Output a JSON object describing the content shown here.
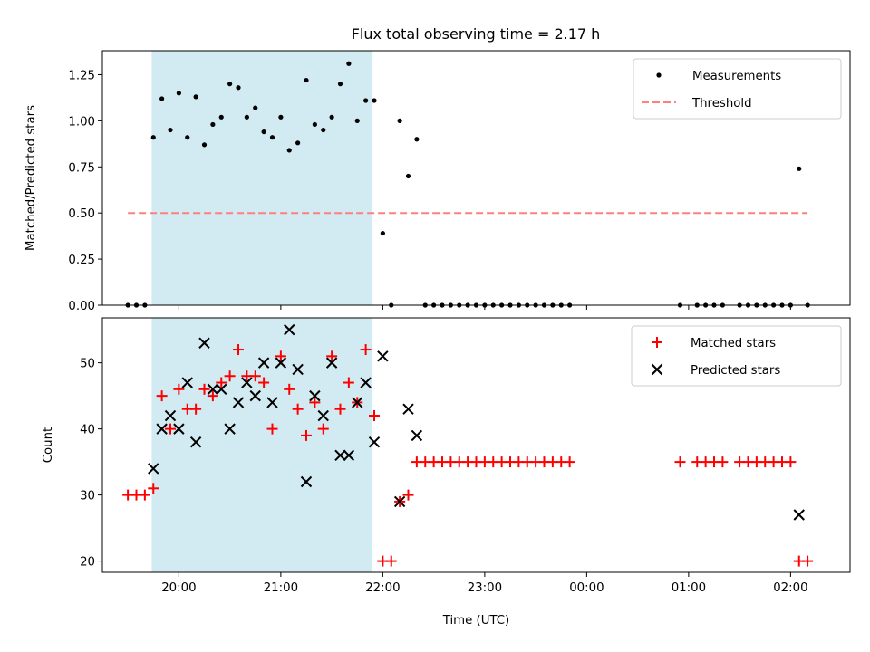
{
  "title": "Flux total observing time = 2.17 h",
  "colors": {
    "shade": "#add8e6",
    "measurements": "#000000",
    "threshold": "#ff7f7f",
    "matched": "#ff0000",
    "predicted": "#000000"
  },
  "chart_data": [
    {
      "type": "scatter",
      "ylabel": "Matched/Predicted stars",
      "ylim": [
        0,
        1.38
      ],
      "yticks": [
        "0.00",
        "0.25",
        "0.50",
        "0.75",
        "1.00",
        "1.25"
      ],
      "xlim": [
        "19:15",
        "02:35"
      ],
      "shaded_span": [
        "19:44",
        "21:54"
      ],
      "legend_position": "top-right",
      "series": [
        {
          "name": "Measurements",
          "marker": "dot",
          "points": [
            [
              "19:30",
              0.0
            ],
            [
              "19:35",
              0.0
            ],
            [
              "19:40",
              0.0
            ],
            [
              "19:45",
              0.91
            ],
            [
              "19:50",
              1.12
            ],
            [
              "19:55",
              0.95
            ],
            [
              "20:00",
              1.15
            ],
            [
              "20:05",
              0.91
            ],
            [
              "20:10",
              1.13
            ],
            [
              "20:15",
              0.87
            ],
            [
              "20:20",
              0.98
            ],
            [
              "20:25",
              1.02
            ],
            [
              "20:30",
              1.2
            ],
            [
              "20:35",
              1.18
            ],
            [
              "20:40",
              1.02
            ],
            [
              "20:45",
              1.07
            ],
            [
              "20:50",
              0.94
            ],
            [
              "20:55",
              0.91
            ],
            [
              "21:00",
              1.02
            ],
            [
              "21:05",
              0.84
            ],
            [
              "21:10",
              0.88
            ],
            [
              "21:15",
              1.22
            ],
            [
              "21:20",
              0.98
            ],
            [
              "21:25",
              0.95
            ],
            [
              "21:30",
              1.02
            ],
            [
              "21:35",
              1.2
            ],
            [
              "21:40",
              1.31
            ],
            [
              "21:45",
              1.0
            ],
            [
              "21:50",
              1.11
            ],
            [
              "21:55",
              1.11
            ],
            [
              "22:00",
              0.39
            ],
            [
              "22:05",
              0.0
            ],
            [
              "22:10",
              1.0
            ],
            [
              "22:15",
              0.7
            ],
            [
              "22:20",
              0.9
            ],
            [
              "22:25",
              0.0
            ],
            [
              "22:30",
              0.0
            ],
            [
              "22:35",
              0.0
            ],
            [
              "22:40",
              0.0
            ],
            [
              "22:45",
              0.0
            ],
            [
              "22:50",
              0.0
            ],
            [
              "22:55",
              0.0
            ],
            [
              "23:00",
              0.0
            ],
            [
              "23:05",
              0.0
            ],
            [
              "23:10",
              0.0
            ],
            [
              "23:15",
              0.0
            ],
            [
              "23:20",
              0.0
            ],
            [
              "23:25",
              0.0
            ],
            [
              "23:30",
              0.0
            ],
            [
              "23:35",
              0.0
            ],
            [
              "23:40",
              0.0
            ],
            [
              "23:45",
              0.0
            ],
            [
              "23:50",
              0.0
            ],
            [
              "00:55",
              0.0
            ],
            [
              "01:05",
              0.0
            ],
            [
              "01:10",
              0.0
            ],
            [
              "01:15",
              0.0
            ],
            [
              "01:20",
              0.0
            ],
            [
              "01:30",
              0.0
            ],
            [
              "01:35",
              0.0
            ],
            [
              "01:40",
              0.0
            ],
            [
              "01:45",
              0.0
            ],
            [
              "01:50",
              0.0
            ],
            [
              "01:55",
              0.0
            ],
            [
              "02:00",
              0.0
            ],
            [
              "02:05",
              0.74
            ],
            [
              "02:10",
              0.0
            ]
          ]
        },
        {
          "name": "Threshold",
          "marker": "dashed-line",
          "points": [
            [
              "19:30",
              0.5
            ],
            [
              "02:10",
              0.5
            ]
          ]
        }
      ]
    },
    {
      "type": "scatter",
      "xlabel": "Time (UTC)",
      "ylabel": "Count",
      "ylim": [
        18.3,
        56.8
      ],
      "yticks": [
        "20",
        "30",
        "40",
        "50"
      ],
      "xticks": [
        "20:00",
        "21:00",
        "22:00",
        "23:00",
        "00:00",
        "01:00",
        "02:00"
      ],
      "xlim": [
        "19:15",
        "02:35"
      ],
      "shaded_span": [
        "19:44",
        "21:54"
      ],
      "legend_position": "top-right",
      "series": [
        {
          "name": "Matched stars",
          "marker": "plus",
          "points": [
            [
              "19:30",
              30
            ],
            [
              "19:35",
              30
            ],
            [
              "19:40",
              30
            ],
            [
              "19:45",
              31
            ],
            [
              "19:50",
              45
            ],
            [
              "19:55",
              40
            ],
            [
              "20:00",
              46
            ],
            [
              "20:05",
              43
            ],
            [
              "20:10",
              43
            ],
            [
              "20:15",
              46
            ],
            [
              "20:20",
              45
            ],
            [
              "20:25",
              47
            ],
            [
              "20:30",
              48
            ],
            [
              "20:35",
              52
            ],
            [
              "20:40",
              48
            ],
            [
              "20:45",
              48
            ],
            [
              "20:50",
              47
            ],
            [
              "20:55",
              40
            ],
            [
              "21:00",
              51
            ],
            [
              "21:05",
              46
            ],
            [
              "21:10",
              43
            ],
            [
              "21:15",
              39
            ],
            [
              "21:20",
              44
            ],
            [
              "21:25",
              40
            ],
            [
              "21:30",
              51
            ],
            [
              "21:35",
              43
            ],
            [
              "21:40",
              47
            ],
            [
              "21:45",
              44
            ],
            [
              "21:50",
              52
            ],
            [
              "21:55",
              42
            ],
            [
              "22:00",
              20
            ],
            [
              "22:05",
              20
            ],
            [
              "22:10",
              29
            ],
            [
              "22:15",
              30
            ],
            [
              "22:20",
              35
            ],
            [
              "22:25",
              35
            ],
            [
              "22:30",
              35
            ],
            [
              "22:35",
              35
            ],
            [
              "22:40",
              35
            ],
            [
              "22:45",
              35
            ],
            [
              "22:50",
              35
            ],
            [
              "22:55",
              35
            ],
            [
              "23:00",
              35
            ],
            [
              "23:05",
              35
            ],
            [
              "23:10",
              35
            ],
            [
              "23:15",
              35
            ],
            [
              "23:20",
              35
            ],
            [
              "23:25",
              35
            ],
            [
              "23:30",
              35
            ],
            [
              "23:35",
              35
            ],
            [
              "23:40",
              35
            ],
            [
              "23:45",
              35
            ],
            [
              "23:50",
              35
            ],
            [
              "00:55",
              35
            ],
            [
              "01:05",
              35
            ],
            [
              "01:10",
              35
            ],
            [
              "01:15",
              35
            ],
            [
              "01:20",
              35
            ],
            [
              "01:30",
              35
            ],
            [
              "01:35",
              35
            ],
            [
              "01:40",
              35
            ],
            [
              "01:45",
              35
            ],
            [
              "01:50",
              35
            ],
            [
              "01:55",
              35
            ],
            [
              "02:00",
              35
            ],
            [
              "02:05",
              20
            ],
            [
              "02:10",
              20
            ]
          ]
        },
        {
          "name": "Predicted stars",
          "marker": "x",
          "points": [
            [
              "19:45",
              34
            ],
            [
              "19:50",
              40
            ],
            [
              "19:55",
              42
            ],
            [
              "20:00",
              40
            ],
            [
              "20:05",
              47
            ],
            [
              "20:10",
              38
            ],
            [
              "20:15",
              53
            ],
            [
              "20:20",
              46
            ],
            [
              "20:25",
              46
            ],
            [
              "20:30",
              40
            ],
            [
              "20:35",
              44
            ],
            [
              "20:40",
              47
            ],
            [
              "20:45",
              45
            ],
            [
              "20:50",
              50
            ],
            [
              "20:55",
              44
            ],
            [
              "21:00",
              50
            ],
            [
              "21:05",
              55
            ],
            [
              "21:10",
              49
            ],
            [
              "21:15",
              32
            ],
            [
              "21:20",
              45
            ],
            [
              "21:25",
              42
            ],
            [
              "21:30",
              50
            ],
            [
              "21:35",
              36
            ],
            [
              "21:40",
              36
            ],
            [
              "21:45",
              44
            ],
            [
              "21:50",
              47
            ],
            [
              "21:55",
              38
            ],
            [
              "22:00",
              51
            ],
            [
              "22:10",
              29
            ],
            [
              "22:15",
              43
            ],
            [
              "22:20",
              39
            ],
            [
              "02:05",
              27
            ]
          ]
        }
      ]
    }
  ]
}
